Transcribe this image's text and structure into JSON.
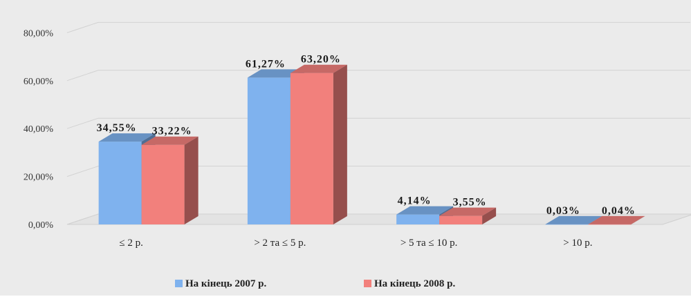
{
  "chart_data": {
    "type": "bar",
    "style": "3d-clustered-column",
    "categories": [
      "≤ 2 р.",
      "> 2 та ≤ 5 р.",
      "> 5 та ≤ 10 р.",
      "> 10 р."
    ],
    "series": [
      {
        "name": "На кінець 2007 р.",
        "color": "#7fb2ee",
        "values": [
          34.55,
          61.27,
          4.14,
          0.03
        ],
        "labels": [
          "34,55%",
          "61,27%",
          "4,14%",
          "0,03%"
        ]
      },
      {
        "name": "На кінець 2008 р.",
        "color": "#f2807c",
        "values": [
          33.22,
          63.2,
          3.55,
          0.04
        ],
        "labels": [
          "33,22%",
          "63,20%",
          "3,55%",
          "0,04%"
        ]
      }
    ],
    "y_ticks": [
      "0,00%",
      "20,00%",
      "40,00%",
      "60,00%",
      "80,00%"
    ],
    "ylim": [
      0,
      80
    ],
    "grid": true,
    "legend_position": "bottom",
    "background_color": "#ebebeb"
  }
}
